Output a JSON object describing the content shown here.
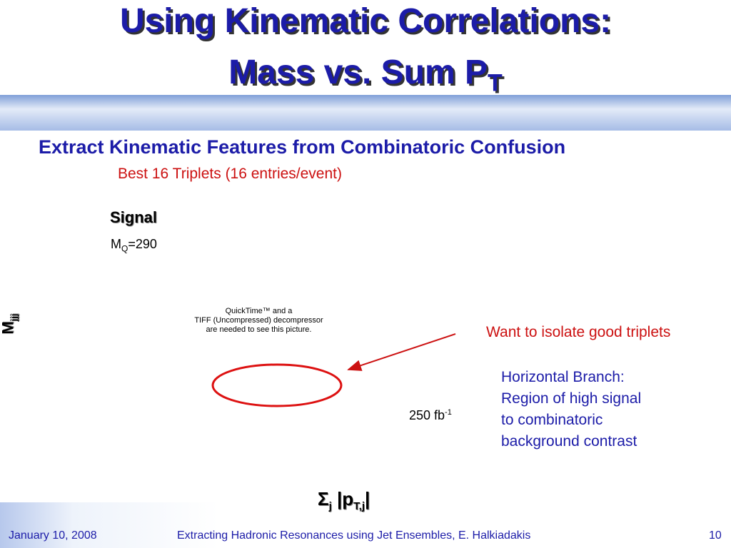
{
  "title": {
    "line1": "Using Kinematic Correlations:",
    "line2": "Mass vs. Sum P",
    "line2_sub": "T"
  },
  "subtitle": "Extract Kinematic Features from Combinatoric Confusion",
  "note": "Best 16 Triplets (16 entries/event)",
  "plot": {
    "signal_label": "Signal",
    "mass_symbol": "M",
    "mass_sub": "Q",
    "mass_value": "=290",
    "y_axis": {
      "symbol": "M",
      "sub": "jjj"
    },
    "placeholder": [
      "QuickTime™ and a",
      "TIFF (Uncompressed) decompressor",
      "are needed to see this picture."
    ],
    "luminosity": "250 fb",
    "luminosity_sup": "-1",
    "x_axis": {
      "sum": "Σ",
      "sub": "j",
      "open": " |p",
      "sub2": "T,j",
      "close": "|"
    }
  },
  "annotations": {
    "arrow_text": "Want to isolate good triplets",
    "branch": [
      "Horizontal Branch:",
      "Region of high signal",
      "to combinatoric",
      "background contrast"
    ]
  },
  "footer": {
    "date": "January 10, 2008",
    "center": "Extracting Hadronic Resonances using Jet Ensembles, E. Halkiadakis",
    "page": "10"
  }
}
